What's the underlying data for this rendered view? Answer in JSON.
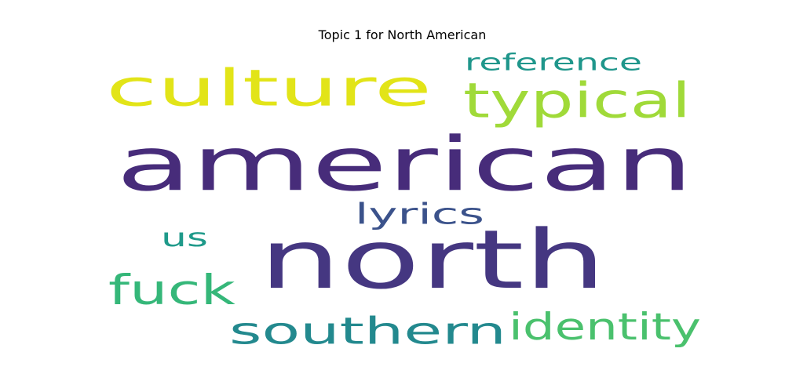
{
  "chart_data": {
    "type": "wordcloud",
    "title": "Topic 1 for North American",
    "words": [
      {
        "text": "american",
        "weight": 1.0,
        "color": "#472c7a"
      },
      {
        "text": "north",
        "weight": 0.97,
        "color": "#453781"
      },
      {
        "text": "culture",
        "weight": 0.6,
        "color": "#e2e418"
      },
      {
        "text": "southern",
        "weight": 0.5,
        "color": "#23898e"
      },
      {
        "text": "typical",
        "weight": 0.46,
        "color": "#a0da39"
      },
      {
        "text": "fuck",
        "weight": 0.44,
        "color": "#35b779"
      },
      {
        "text": "identity",
        "weight": 0.37,
        "color": "#4ac16d"
      },
      {
        "text": "reference",
        "weight": 0.3,
        "color": "#1f968b"
      },
      {
        "text": "lyrics",
        "weight": 0.3,
        "color": "#3b528b"
      },
      {
        "text": "us",
        "weight": 0.3,
        "color": "#1f9a8a"
      }
    ]
  }
}
